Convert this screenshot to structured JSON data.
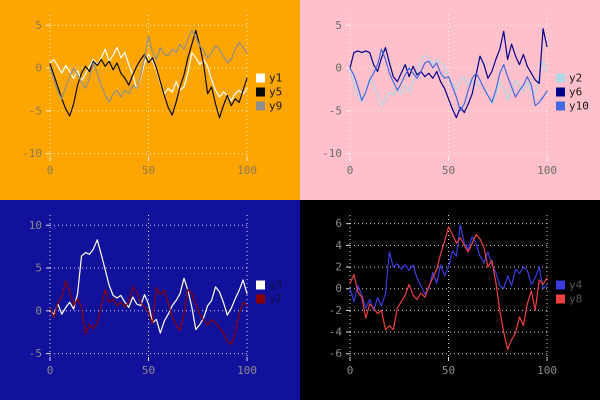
{
  "chart_data": [
    {
      "type": "line",
      "position": "top-left",
      "background": "#FFA500",
      "grid_color": "#FFFFFF",
      "tick_label_color": "#8A7A55",
      "legend_text_color": "#1A1A1A",
      "legend_position": "center-right-outside",
      "xticks": [
        0,
        50,
        100
      ],
      "yticks": [
        5,
        0,
        -5,
        -10
      ],
      "xlim": [
        0,
        101.5
      ],
      "ylim": [
        -10.4,
        6.2
      ],
      "grid": true,
      "x": [
        0,
        2,
        4,
        6,
        8,
        10,
        12,
        14,
        16,
        18,
        20,
        22,
        24,
        26,
        28,
        30,
        32,
        34,
        36,
        38,
        40,
        42,
        44,
        46,
        48,
        50,
        52,
        54,
        56,
        58,
        60,
        62,
        64,
        66,
        68,
        70,
        72,
        74,
        76,
        78,
        80,
        82,
        84,
        86,
        88,
        90,
        92,
        94,
        96,
        98,
        100
      ],
      "series": [
        {
          "name": "y1",
          "color": "#FFFFFF",
          "values": [
            0.6,
            1.0,
            0.2,
            -0.6,
            0.3,
            -0.4,
            -1.2,
            -0.3,
            -1.5,
            -0.7,
            0.2,
            1.0,
            0.4,
            1.2,
            2.2,
            0.8,
            1.5,
            2.4,
            1.2,
            1.8,
            0.4,
            -0.8,
            -2.4,
            -1.2,
            0.6,
            1.6,
            0.8,
            -0.2,
            -1.8,
            -3.0,
            -2.4,
            -2.8,
            -1.6,
            -2.6,
            -2.2,
            -0.6,
            1.8,
            1.2,
            0.4,
            1.0,
            0.2,
            -1.4,
            -2.6,
            -3.4,
            -2.8,
            -3.2,
            -3.8,
            -3.0,
            -2.6,
            -3.0,
            -2.4
          ]
        },
        {
          "name": "y5",
          "color": "#0A0A0A",
          "values": [
            0.5,
            -0.8,
            -2.2,
            -3.6,
            -4.8,
            -5.6,
            -4.2,
            -2.0,
            -0.6,
            0.2,
            -0.4,
            0.8,
            0.3,
            1.0,
            0.2,
            0.8,
            -0.2,
            0.6,
            -0.6,
            -1.2,
            -2.0,
            -0.8,
            0.2,
            1.0,
            1.6,
            0.6,
            1.2,
            0.0,
            -1.6,
            -3.2,
            -4.6,
            -5.5,
            -4.0,
            -2.2,
            -0.8,
            1.2,
            2.8,
            4.4,
            2.6,
            0.4,
            -3.0,
            -2.2,
            -4.2,
            -5.8,
            -4.4,
            -3.2,
            -4.4,
            -3.6,
            -4.0,
            -2.6,
            -1.2
          ]
        },
        {
          "name": "y9",
          "color": "#8E8E8E",
          "values": [
            0.0,
            -1.4,
            -2.8,
            -3.6,
            -2.2,
            -1.0,
            0.0,
            -0.8,
            -1.6,
            -2.4,
            -1.2,
            0.6,
            -0.6,
            -2.0,
            -3.2,
            -4.0,
            -3.0,
            -2.6,
            -3.4,
            -2.6,
            -3.0,
            -2.0,
            -2.4,
            -1.0,
            1.2,
            3.8,
            1.8,
            1.0,
            2.4,
            1.6,
            1.4,
            2.2,
            1.8,
            2.8,
            2.2,
            3.4,
            4.4,
            3.6,
            2.6,
            2.0,
            1.2,
            1.8,
            2.6,
            2.2,
            1.4,
            0.6,
            1.0,
            2.2,
            3.0,
            2.4,
            1.8
          ]
        }
      ]
    },
    {
      "type": "line",
      "position": "top-right",
      "background": "#FFC0CB",
      "grid_color": "#FFFFFF",
      "tick_label_color": "#6B6B6B",
      "legend_text_color": "#1A1A1A",
      "legend_position": "center-right-outside",
      "xticks": [
        0,
        50,
        100
      ],
      "yticks": [
        5,
        0,
        -5,
        -10
      ],
      "xlim": [
        0,
        101.5
      ],
      "ylim": [
        -10.4,
        6.2
      ],
      "grid": true,
      "x": [
        0,
        2,
        4,
        6,
        8,
        10,
        12,
        14,
        16,
        18,
        20,
        22,
        24,
        26,
        28,
        30,
        32,
        34,
        36,
        38,
        40,
        42,
        44,
        46,
        48,
        50,
        52,
        54,
        56,
        58,
        60,
        62,
        64,
        66,
        68,
        70,
        72,
        74,
        76,
        78,
        80,
        82,
        84,
        86,
        88,
        90,
        92,
        94,
        96,
        98,
        100
      ],
      "series": [
        {
          "name": "y2",
          "color": "#ADD8E6",
          "values": [
            0.0,
            -1.6,
            -3.2,
            -4.0,
            -2.6,
            -1.2,
            -2.0,
            -3.2,
            -4.4,
            -3.6,
            -2.8,
            -3.2,
            -2.4,
            -3.0,
            -2.0,
            -2.8,
            -1.6,
            -0.4,
            1.0,
            1.5,
            1.2,
            0.4,
            1.0,
            0.6,
            0.2,
            -1.0,
            -1.8,
            -2.6,
            -1.4,
            -1.0,
            -2.0,
            -1.2,
            -2.2,
            -1.4,
            -2.4,
            -3.2,
            -4.2,
            -3.2,
            -1.6,
            -2.4,
            -3.8,
            -2.6,
            -1.4,
            -2.0,
            -2.8,
            -1.6,
            -2.6,
            -3.0,
            -1.0,
            0.8,
            -0.5
          ]
        },
        {
          "name": "y6",
          "color": "#00008B",
          "values": [
            0.0,
            1.8,
            2.0,
            1.8,
            2.0,
            1.8,
            0.4,
            -0.4,
            1.2,
            2.4,
            0.6,
            -1.0,
            -1.6,
            -0.6,
            0.4,
            -1.0,
            0.2,
            -0.8,
            -0.4,
            -1.0,
            -0.6,
            -1.2,
            -0.4,
            -1.6,
            -2.4,
            -3.6,
            -4.8,
            -5.8,
            -4.6,
            -5.2,
            -4.2,
            -3.0,
            -0.8,
            1.4,
            0.4,
            -1.2,
            -0.4,
            1.0,
            2.2,
            4.3,
            1.0,
            2.8,
            1.4,
            0.4,
            1.6,
            0.2,
            -0.6,
            -1.4,
            -1.8,
            4.6,
            2.5
          ]
        },
        {
          "name": "y10",
          "color": "#4169E1",
          "values": [
            0.0,
            -0.8,
            -2.2,
            -3.8,
            -2.8,
            -1.4,
            -0.6,
            0.4,
            2.2,
            1.0,
            -0.6,
            -1.6,
            -2.6,
            -1.8,
            -0.8,
            0.0,
            -0.6,
            -1.2,
            -0.4,
            0.6,
            0.8,
            0.0,
            0.6,
            -0.6,
            -1.2,
            -1.0,
            -2.2,
            -3.4,
            -5.0,
            -4.2,
            -2.6,
            -1.2,
            -0.6,
            -1.4,
            -2.4,
            -3.2,
            -4.0,
            -2.6,
            -0.6,
            0.4,
            -1.0,
            -2.2,
            -3.4,
            -2.6,
            -2.0,
            -1.0,
            -2.0,
            -4.4,
            -4.0,
            -3.4,
            -2.7
          ]
        }
      ]
    },
    {
      "type": "line",
      "position": "bottom-left",
      "background": "#11119C",
      "grid_color": "#FFFFFF",
      "tick_label_color": "#8B8B8B",
      "legend_text_color": "#10103A",
      "legend_position": "center-right-outside",
      "xticks": [
        0,
        50,
        100
      ],
      "yticks": [
        10,
        5,
        0,
        -5
      ],
      "xlim": [
        0,
        101.5
      ],
      "ylim": [
        -5.4,
        11.2
      ],
      "grid": true,
      "x": [
        0,
        2,
        4,
        6,
        8,
        10,
        12,
        14,
        16,
        18,
        20,
        22,
        24,
        26,
        28,
        30,
        32,
        34,
        36,
        38,
        40,
        42,
        44,
        46,
        48,
        50,
        52,
        54,
        56,
        58,
        60,
        62,
        64,
        66,
        68,
        70,
        72,
        74,
        76,
        78,
        80,
        82,
        84,
        86,
        88,
        90,
        92,
        94,
        96,
        98,
        100
      ],
      "series": [
        {
          "name": "y3",
          "color": "#FFFFF0",
          "values": [
            0.0,
            -0.4,
            0.8,
            -0.4,
            0.4,
            1.0,
            0.2,
            2.0,
            6.4,
            6.8,
            6.6,
            7.2,
            8.3,
            6.6,
            4.8,
            3.0,
            1.8,
            1.5,
            1.8,
            1.0,
            0.4,
            1.6,
            0.8,
            0.6,
            1.9,
            0.8,
            -1.4,
            -1.0,
            -2.6,
            -1.2,
            -0.4,
            0.6,
            1.2,
            2.0,
            3.8,
            2.4,
            0.4,
            -2.2,
            -1.6,
            -0.8,
            0.6,
            1.2,
            2.8,
            2.2,
            1.0,
            -0.5,
            0.3,
            1.4,
            2.4,
            3.6,
            2.0
          ]
        },
        {
          "name": "y7",
          "color": "#8B0000",
          "values": [
            0.3,
            -0.8,
            1.0,
            1.6,
            3.5,
            2.2,
            0.6,
            1.4,
            0.4,
            -2.7,
            -1.6,
            -2.1,
            -1.4,
            0.5,
            2.5,
            1.0,
            1.4,
            0.6,
            1.0,
            0.4,
            1.1,
            2.8,
            2.2,
            1.0,
            0.4,
            -0.2,
            -1.5,
            2.7,
            1.9,
            2.4,
            0.9,
            -0.7,
            -1.6,
            -2.3,
            -0.4,
            2.5,
            2.0,
            0.8,
            -0.4,
            -1.1,
            -1.7,
            -1.0,
            -1.4,
            -2.0,
            -2.6,
            -3.6,
            -3.9,
            -2.6,
            -0.4,
            1.0,
            0.6
          ]
        }
      ]
    },
    {
      "type": "line",
      "position": "bottom-right",
      "background": "#000000",
      "grid_color": "#FFFFFF",
      "tick_label_color": "#8A8A8A",
      "legend_text_color": "#55555E",
      "legend_position": "center-right-outside",
      "xticks": [
        0,
        50,
        100
      ],
      "yticks": [
        6,
        4,
        2,
        0,
        -2,
        -4,
        -6
      ],
      "xlim": [
        0,
        101.5
      ],
      "ylim": [
        -6.3,
        6.8
      ],
      "grid": true,
      "x": [
        0,
        2,
        4,
        6,
        8,
        10,
        12,
        14,
        16,
        18,
        20,
        22,
        24,
        26,
        28,
        30,
        32,
        34,
        36,
        38,
        40,
        42,
        44,
        46,
        48,
        50,
        52,
        54,
        56,
        58,
        60,
        62,
        64,
        66,
        68,
        70,
        72,
        74,
        76,
        78,
        80,
        82,
        84,
        86,
        88,
        90,
        92,
        94,
        96,
        98,
        100
      ],
      "series": [
        {
          "name": "y4",
          "color": "#3B3BDF",
          "values": [
            0.0,
            -1.2,
            0.3,
            -0.6,
            -1.8,
            -1.0,
            -2.0,
            -0.8,
            -1.6,
            -0.4,
            3.4,
            2.0,
            2.3,
            1.8,
            2.2,
            1.7,
            2.2,
            1.0,
            0.3,
            -0.5,
            0.0,
            1.5,
            0.5,
            2.2,
            1.2,
            2.0,
            3.5,
            3.0,
            5.9,
            4.2,
            3.6,
            4.8,
            4.2,
            3.0,
            2.4,
            3.4,
            2.2,
            1.5,
            0.3,
            0.0,
            1.2,
            0.3,
            1.8,
            1.4,
            2.0,
            1.7,
            0.4,
            1.0,
            2.0,
            0.0,
            0.4
          ]
        },
        {
          "name": "y8",
          "color": "#EE4040",
          "values": [
            0.5,
            1.3,
            -0.3,
            -0.8,
            -2.7,
            -1.4,
            -1.8,
            -2.3,
            -2.0,
            -3.8,
            -3.4,
            -3.8,
            -1.8,
            -1.2,
            -0.6,
            0.4,
            -0.6,
            -1.0,
            -0.4,
            -0.8,
            0.2,
            1.0,
            1.8,
            3.2,
            4.4,
            5.7,
            5.0,
            4.2,
            4.7,
            4.0,
            3.4,
            4.2,
            5.0,
            4.6,
            3.8,
            2.0,
            2.6,
            0.6,
            -2.0,
            -4.0,
            -5.6,
            -4.7,
            -4.1,
            -2.6,
            -3.4,
            -1.4,
            -0.2,
            -2.0,
            0.8,
            0.4,
            1.0
          ]
        }
      ]
    }
  ]
}
